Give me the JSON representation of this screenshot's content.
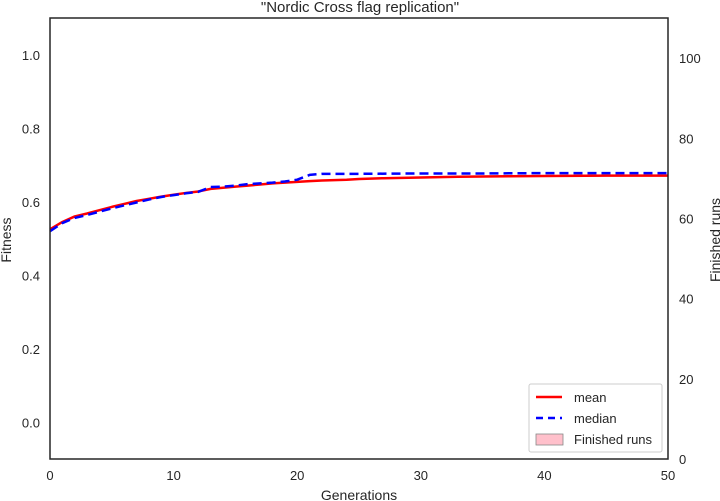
{
  "chart_data": {
    "type": "line",
    "title": "\"Nordic Cross flag replication\"",
    "xlabel": "Generations",
    "ylabel": "Fitness",
    "y2label": "Finished runs",
    "xlim": [
      0,
      50
    ],
    "ylim": [
      -0.1,
      1.1
    ],
    "y2lim": [
      0,
      110
    ],
    "xticks": [
      "0",
      "10",
      "20",
      "30",
      "40",
      "50"
    ],
    "yticks": [
      "0.0",
      "0.2",
      "0.4",
      "0.6",
      "0.8",
      "1.0"
    ],
    "y2ticks": [
      "0",
      "20",
      "40",
      "60",
      "80",
      "100"
    ],
    "grid": false,
    "legend_position": "bottom-right",
    "series": [
      {
        "name": "mean",
        "color": "#ff0000",
        "style": "solid",
        "x": [
          0,
          1,
          2,
          3,
          4,
          5,
          6,
          7,
          8,
          9,
          10,
          11,
          12,
          13,
          14,
          15,
          16,
          17,
          18,
          19,
          20,
          21,
          22,
          23,
          24,
          25,
          27,
          30,
          33,
          36,
          40,
          45,
          50
        ],
        "y": [
          0.525,
          0.545,
          0.56,
          0.568,
          0.577,
          0.586,
          0.594,
          0.602,
          0.608,
          0.614,
          0.619,
          0.624,
          0.628,
          0.635,
          0.638,
          0.641,
          0.644,
          0.647,
          0.65,
          0.652,
          0.654,
          0.656,
          0.658,
          0.659,
          0.66,
          0.662,
          0.664,
          0.666,
          0.668,
          0.669,
          0.67,
          0.671,
          0.671
        ]
      },
      {
        "name": "median",
        "color": "#0000ff",
        "style": "dashed",
        "x": [
          0,
          1,
          2,
          3,
          4,
          5,
          6,
          7,
          8,
          9,
          10,
          11,
          12,
          13,
          14,
          15,
          16,
          17,
          18,
          19,
          20,
          21,
          22,
          25,
          30,
          35,
          40,
          45,
          50
        ],
        "y": [
          0.52,
          0.542,
          0.556,
          0.564,
          0.573,
          0.582,
          0.59,
          0.598,
          0.606,
          0.613,
          0.618,
          0.623,
          0.627,
          0.64,
          0.641,
          0.644,
          0.648,
          0.65,
          0.652,
          0.655,
          0.66,
          0.673,
          0.676,
          0.676,
          0.677,
          0.677,
          0.678,
          0.678,
          0.678
        ]
      }
    ],
    "legend": [
      {
        "label": "mean",
        "kind": "line",
        "color": "#ff0000",
        "style": "solid"
      },
      {
        "label": "median",
        "kind": "line",
        "color": "#0000ff",
        "style": "dashed"
      },
      {
        "label": "Finished runs",
        "kind": "patch",
        "color": "#ffc0cb"
      }
    ]
  }
}
